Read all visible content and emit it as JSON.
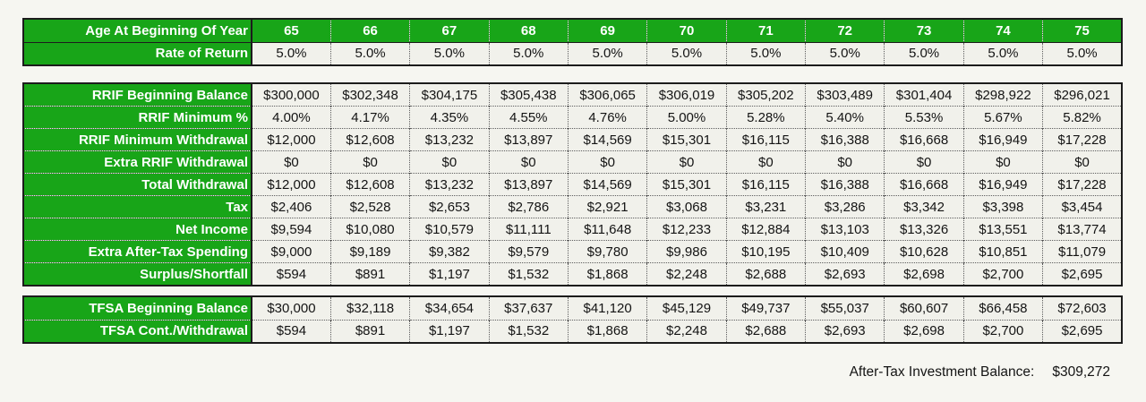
{
  "window": {
    "background": "#f6f6f1",
    "description": "Retirement spreadsheet with RRIF and TFSA projection tables"
  },
  "colors": {
    "header_green": "#18a518",
    "cell_background": "#f1f1eb",
    "border_dark": "#1c1c1c"
  },
  "age_table": {
    "rows": [
      {
        "label": "Age At Beginning Of Year",
        "style": "green",
        "values": [
          "65",
          "66",
          "67",
          "68",
          "69",
          "70",
          "71",
          "72",
          "73",
          "74",
          "75"
        ]
      },
      {
        "label": "Rate of Return",
        "style": "plain",
        "values": [
          "5.0%",
          "5.0%",
          "5.0%",
          "5.0%",
          "5.0%",
          "5.0%",
          "5.0%",
          "5.0%",
          "5.0%",
          "5.0%",
          "5.0%"
        ]
      }
    ]
  },
  "rrif_table": {
    "rows": [
      {
        "label": "RRIF Beginning Balance",
        "style": "plain",
        "values": [
          "$300,000",
          "$302,348",
          "$304,175",
          "$305,438",
          "$306,065",
          "$306,019",
          "$305,202",
          "$303,489",
          "$301,404",
          "$298,922",
          "$296,021"
        ]
      },
      {
        "label": "RRIF Minimum %",
        "style": "plain",
        "values": [
          "4.00%",
          "4.17%",
          "4.35%",
          "4.55%",
          "4.76%",
          "5.00%",
          "5.28%",
          "5.40%",
          "5.53%",
          "5.67%",
          "5.82%"
        ]
      },
      {
        "label": "RRIF Minimum Withdrawal",
        "style": "plain",
        "values": [
          "$12,000",
          "$12,608",
          "$13,232",
          "$13,897",
          "$14,569",
          "$15,301",
          "$16,115",
          "$16,388",
          "$16,668",
          "$16,949",
          "$17,228"
        ]
      },
      {
        "label": "Extra RRIF Withdrawal",
        "style": "plain",
        "values": [
          "$0",
          "$0",
          "$0",
          "$0",
          "$0",
          "$0",
          "$0",
          "$0",
          "$0",
          "$0",
          "$0"
        ]
      },
      {
        "label": "Total Withdrawal",
        "style": "plain",
        "values": [
          "$12,000",
          "$12,608",
          "$13,232",
          "$13,897",
          "$14,569",
          "$15,301",
          "$16,115",
          "$16,388",
          "$16,668",
          "$16,949",
          "$17,228"
        ]
      },
      {
        "label": "Tax",
        "style": "plain",
        "values": [
          "$2,406",
          "$2,528",
          "$2,653",
          "$2,786",
          "$2,921",
          "$3,068",
          "$3,231",
          "$3,286",
          "$3,342",
          "$3,398",
          "$3,454"
        ]
      },
      {
        "label": "Net Income",
        "style": "plain",
        "values": [
          "$9,594",
          "$10,080",
          "$10,579",
          "$11,111",
          "$11,648",
          "$12,233",
          "$12,884",
          "$13,103",
          "$13,326",
          "$13,551",
          "$13,774"
        ]
      },
      {
        "label": "Extra After-Tax Spending",
        "style": "plain",
        "values": [
          "$9,000",
          "$9,189",
          "$9,382",
          "$9,579",
          "$9,780",
          "$9,986",
          "$10,195",
          "$10,409",
          "$10,628",
          "$10,851",
          "$11,079"
        ]
      },
      {
        "label": "Surplus/Shortfall",
        "style": "plain",
        "values": [
          "$594",
          "$891",
          "$1,197",
          "$1,532",
          "$1,868",
          "$2,248",
          "$2,688",
          "$2,693",
          "$2,698",
          "$2,700",
          "$2,695"
        ]
      }
    ]
  },
  "tfsa_table": {
    "rows": [
      {
        "label": "TFSA Beginning Balance",
        "style": "plain",
        "values": [
          "$30,000",
          "$32,118",
          "$34,654",
          "$37,637",
          "$41,120",
          "$45,129",
          "$49,737",
          "$55,037",
          "$60,607",
          "$66,458",
          "$72,603"
        ]
      },
      {
        "label": "TFSA Cont./Withdrawal",
        "style": "plain",
        "values": [
          "$594",
          "$891",
          "$1,197",
          "$1,532",
          "$1,868",
          "$2,248",
          "$2,688",
          "$2,693",
          "$2,698",
          "$2,700",
          "$2,695"
        ]
      }
    ]
  },
  "footer": {
    "label": "After-Tax Investment Balance:",
    "value": "$309,272"
  }
}
